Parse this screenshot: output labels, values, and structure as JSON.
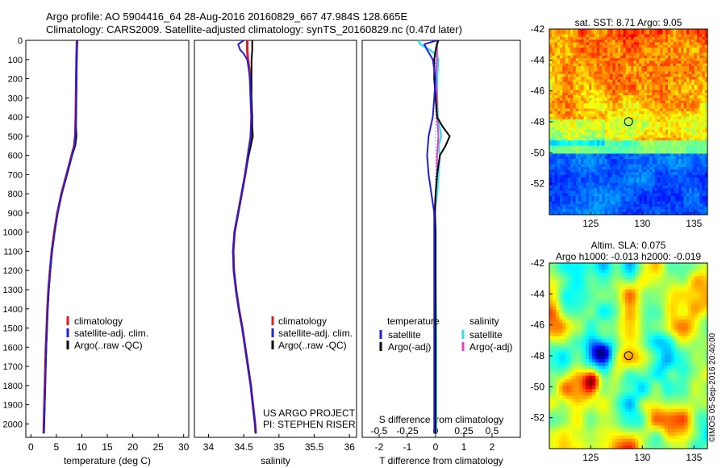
{
  "header": {
    "title1": "Argo profile: AO 5904416_64 28-Aug-2016 20160829_667 47.984S 128.665E",
    "title2": "Climatology: CARS2009. Satellite-adjusted climatology: synTS_20160829.nc (0.47d later)",
    "stamp": "©IMOS 05-Sep-2016 20:40:00"
  },
  "colors": {
    "climatology": "#e41a1c",
    "satellite": "#1f1fe0",
    "argo": "#000000",
    "salinity_satellite": "#33e0e6",
    "salinity_argo": "#e040c8"
  },
  "chart_data": [
    {
      "type": "line",
      "xlabel": "temperature (deg C)",
      "xlim": [
        -1,
        31
      ],
      "xticks": [
        "0",
        "5",
        "10",
        "15",
        "20",
        "25",
        "30"
      ],
      "ylim": [
        2070,
        0
      ],
      "yticks": [
        "0",
        "100",
        "200",
        "300",
        "400",
        "500",
        "600",
        "700",
        "800",
        "900",
        "1000",
        "1100",
        "1200",
        "1300",
        "1400",
        "1500",
        "1600",
        "1700",
        "1800",
        "1900",
        "2000"
      ],
      "legend": [
        "climatology",
        "satellite-adj. clim.",
        "Argo(..raw -QC)"
      ],
      "series": [
        {
          "name": "climatology",
          "y": [
            0,
            50,
            100,
            200,
            300,
            400,
            500,
            550,
            600,
            700,
            800,
            900,
            1000,
            1100,
            1200,
            1300,
            1400,
            1500,
            1600,
            1700,
            1800,
            1900,
            2000,
            2050
          ],
          "x": [
            9.05,
            9.0,
            8.95,
            8.9,
            8.85,
            8.8,
            8.7,
            8.5,
            8.0,
            7.0,
            6.0,
            5.2,
            4.6,
            4.1,
            3.75,
            3.45,
            3.25,
            3.1,
            2.95,
            2.85,
            2.75,
            2.65,
            2.55,
            2.5
          ]
        },
        {
          "name": "satellite-adj. clim.",
          "y": [
            0,
            50,
            100,
            200,
            300,
            400,
            500,
            550,
            600,
            700,
            800,
            900,
            1000,
            1100,
            1200,
            1300,
            1400,
            1500,
            1600,
            1700,
            1800,
            1900,
            2000,
            2050
          ],
          "x": [
            9.1,
            9.05,
            9.0,
            8.95,
            8.9,
            8.85,
            8.75,
            8.55,
            8.05,
            7.05,
            6.05,
            5.25,
            4.65,
            4.15,
            3.8,
            3.5,
            3.3,
            3.15,
            3.0,
            2.9,
            2.8,
            2.7,
            2.6,
            2.55
          ]
        },
        {
          "name": "Argo(..raw -QC)",
          "y": [
            0,
            50,
            100,
            200,
            300,
            400,
            450,
            500,
            550,
            600,
            700,
            800,
            900,
            1000,
            1100,
            1200,
            1300,
            1400,
            1500,
            1600,
            1700,
            1800,
            1900,
            2000,
            2050
          ],
          "x": [
            9.1,
            9.05,
            9.0,
            8.95,
            8.9,
            8.85,
            8.85,
            8.95,
            8.7,
            8.1,
            7.1,
            6.05,
            5.25,
            4.65,
            4.15,
            3.8,
            3.5,
            3.3,
            3.15,
            3.0,
            2.9,
            2.8,
            2.7,
            2.6,
            2.55
          ]
        }
      ]
    },
    {
      "type": "line",
      "xlabel": "salinity",
      "xlim": [
        33.8,
        36.1
      ],
      "xticks": [
        "34",
        "34.5",
        "35",
        "35.5",
        "36"
      ],
      "ylim": [
        2070,
        0
      ],
      "legend": [
        "climatology",
        "satellite-adj. clim.",
        "Argo(..raw -QC)"
      ],
      "annotation": [
        "US ARGO PROJECT",
        "PI: STEPHEN RISER"
      ],
      "series": [
        {
          "name": "climatology",
          "y": [
            0,
            50,
            100,
            150,
            200,
            300,
            400,
            500,
            600,
            700,
            800,
            900,
            1000,
            1100,
            1200,
            1300,
            1400,
            1500,
            1600,
            1700,
            1800,
            1900,
            2000,
            2050
          ],
          "x": [
            34.55,
            34.55,
            34.56,
            34.58,
            34.59,
            34.6,
            34.61,
            34.6,
            34.56,
            34.52,
            34.47,
            34.42,
            34.37,
            34.35,
            34.36,
            34.39,
            34.43,
            34.48,
            34.52,
            34.56,
            34.6,
            34.63,
            34.66,
            34.67
          ]
        },
        {
          "name": "satellite-adj. clim.",
          "y": [
            0,
            20,
            50,
            70,
            100,
            150,
            200,
            300,
            400,
            500,
            600,
            700,
            800,
            900,
            1000,
            1100,
            1200,
            1300,
            1400,
            1500,
            1600,
            1700,
            1800,
            1900,
            2000,
            2050
          ],
          "x": [
            34.5,
            34.42,
            34.45,
            34.5,
            34.55,
            34.57,
            34.59,
            34.6,
            34.61,
            34.6,
            34.56,
            34.52,
            34.47,
            34.42,
            34.37,
            34.35,
            34.36,
            34.39,
            34.43,
            34.48,
            34.52,
            34.56,
            34.6,
            34.63,
            34.66,
            34.67
          ]
        },
        {
          "name": "Argo(..raw -QC)",
          "y": [
            0,
            50,
            100,
            200,
            300,
            400,
            450,
            500,
            550,
            600,
            700,
            800,
            900,
            1000,
            1100,
            1200,
            1300,
            1400,
            1500,
            1600,
            1700,
            1800,
            1900,
            2000,
            2050
          ],
          "x": [
            34.62,
            34.62,
            34.61,
            34.61,
            34.61,
            34.62,
            34.62,
            34.63,
            34.6,
            34.57,
            34.52,
            34.47,
            34.42,
            34.37,
            34.35,
            34.36,
            34.39,
            34.43,
            34.48,
            34.52,
            34.56,
            34.6,
            34.63,
            34.66,
            34.67
          ]
        }
      ]
    },
    {
      "type": "line",
      "xlabel": "T difference from climatology",
      "xlabel2": "S difference from climatology",
      "xlim": [
        -2.6,
        3.0
      ],
      "xticks": [
        "-2",
        "-1",
        "0",
        "1",
        "2"
      ],
      "xticks2": [
        "-0.5",
        "-0.25",
        "0",
        "0.25",
        "0.5"
      ],
      "ylim": [
        2070,
        0
      ],
      "legend_temperature_title": "temperature",
      "legend_salinity_title": "salinity",
      "legend_temperature": [
        "satellite",
        "Argo(-adj)"
      ],
      "legend_salinity": [
        "satellite",
        "Argo(-adj)"
      ],
      "series": [
        {
          "name": "satellite",
          "y": [
            0,
            20,
            50,
            100,
            200,
            300,
            400,
            500,
            600,
            700,
            800,
            900,
            1000,
            1200,
            1500,
            1800,
            2000,
            2050
          ],
          "x": [
            0.05,
            -0.4,
            -0.3,
            -0.1,
            0.0,
            -0.05,
            -0.1,
            -0.25,
            -0.3,
            -0.25,
            -0.15,
            -0.05,
            -0.05,
            -0.05,
            -0.05,
            -0.05,
            -0.05,
            -0.05
          ]
        },
        {
          "name": "Argo(-adj)",
          "y": [
            0,
            20,
            50,
            100,
            200,
            300,
            400,
            450,
            500,
            550,
            600,
            700,
            800,
            900,
            1000,
            1200,
            1500,
            1800,
            2000,
            2050
          ],
          "x": [
            0.1,
            0.05,
            0.0,
            -0.05,
            -0.05,
            0.0,
            0.05,
            0.25,
            0.5,
            0.35,
            0.15,
            0.05,
            0.0,
            -0.02,
            0.0,
            0.0,
            0.0,
            0.0,
            0.0,
            0.0
          ]
        },
        {
          "name": "satellite",
          "y": [
            0,
            20,
            50,
            80,
            100,
            200,
            300,
            400,
            500,
            550,
            600,
            700,
            800,
            900,
            1000,
            1200,
            1500,
            1800,
            2000,
            2050
          ],
          "x": [
            -0.6,
            -0.55,
            -0.2,
            0.05,
            0.1,
            0.05,
            0.05,
            0.08,
            0.2,
            0.1,
            0.15,
            0.1,
            0.05,
            -0.05,
            0.0,
            0.0,
            0.02,
            0.02,
            0.02,
            0.02
          ]
        },
        {
          "name": "Argo(-adj)",
          "y": [
            0,
            50,
            100,
            200,
            300,
            400,
            500,
            600,
            700,
            800,
            900,
            1000,
            1100,
            1200,
            1300,
            1500,
            1700,
            1900,
            2050
          ],
          "x": [
            0.05,
            0.05,
            0.05,
            0.0,
            0.05,
            0.05,
            0.1,
            0.05,
            0.05,
            0.0,
            -0.05,
            -0.02,
            -0.02,
            0.0,
            0.0,
            0.0,
            0.0,
            0.0,
            0.0
          ]
        }
      ]
    },
    {
      "type": "heatmap",
      "title": "sat. SST: 8.71 Argo: 9.05",
      "xlim": [
        121,
        136.3
      ],
      "ylim": [
        -54,
        -42
      ],
      "xticks": [
        "125",
        "130",
        "135"
      ],
      "yticks": [
        "-42",
        "-44",
        "-46",
        "-48",
        "-50",
        "-52"
      ],
      "marker": [
        128.665,
        -47.984
      ]
    },
    {
      "type": "heatmap",
      "title": "Altim. SLA: 0.075",
      "title2": "Argo h1000: -0.013 h2000: -0.019",
      "xlim": [
        121,
        136.3
      ],
      "ylim": [
        -54,
        -42
      ],
      "xticks": [
        "125",
        "130",
        "135"
      ],
      "yticks": [
        "-42",
        "-44",
        "-46",
        "-48",
        "-50",
        "-52"
      ],
      "marker": [
        128.665,
        -47.984
      ]
    }
  ]
}
